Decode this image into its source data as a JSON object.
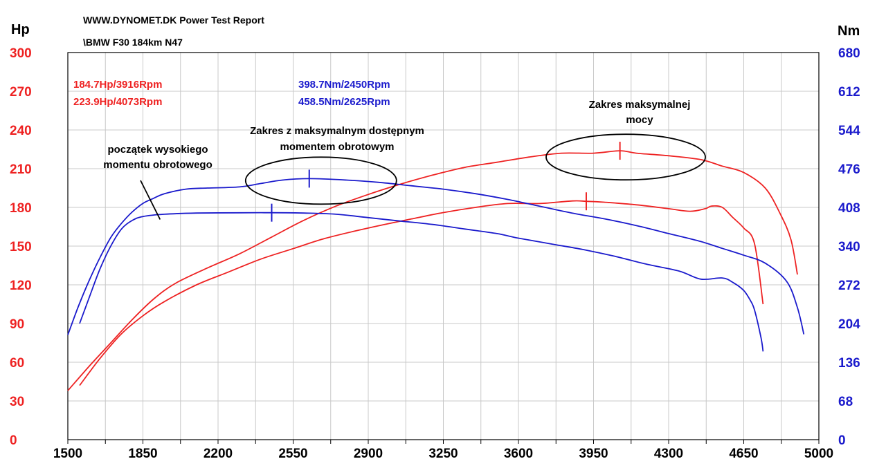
{
  "header": {
    "title": "WWW.DYNOMET.DK  Power Test Report",
    "subtitle": "\\BMW F30 184km N47"
  },
  "colors": {
    "power": "#ee2222",
    "torque": "#1a1acc",
    "grid": "#c8c8c8",
    "text": "#000000"
  },
  "chart_data": {
    "type": "line",
    "x": {
      "label": "",
      "range": [
        1500,
        5000
      ],
      "ticks": [
        1500,
        1850,
        2200,
        2550,
        2900,
        3250,
        3600,
        3950,
        4300,
        4650,
        5000
      ],
      "minor_step": 175
    },
    "y_left": {
      "label": "Hp",
      "range": [
        0,
        300
      ],
      "ticks": [
        0,
        30,
        60,
        90,
        120,
        150,
        180,
        210,
        240,
        270,
        300
      ]
    },
    "y_right": {
      "label": "Nm",
      "range": [
        0,
        680
      ],
      "ticks": [
        0,
        68,
        136,
        204,
        272,
        340,
        408,
        476,
        544,
        612,
        680
      ]
    },
    "grid": true,
    "readouts": {
      "power": [
        "184.7Hp/3916Rpm",
        "223.9Hp/4073Rpm"
      ],
      "torque": [
        "398.7Nm/2450Rpm",
        "458.5Nm/2625Rpm"
      ]
    },
    "series": [
      {
        "unit": "Hp",
        "axis": "left",
        "color": "#ee2222",
        "marker": [
          3916,
          184.7
        ],
        "points": [
          [
            1555,
            42
          ],
          [
            1650,
            63
          ],
          [
            1750,
            82
          ],
          [
            1850,
            96
          ],
          [
            1950,
            107
          ],
          [
            2100,
            120
          ],
          [
            2250,
            130
          ],
          [
            2400,
            140
          ],
          [
            2550,
            148
          ],
          [
            2700,
            156
          ],
          [
            2900,
            164
          ],
          [
            3100,
            171
          ],
          [
            3250,
            176
          ],
          [
            3400,
            180
          ],
          [
            3550,
            183
          ],
          [
            3700,
            183
          ],
          [
            3850,
            185
          ],
          [
            3916,
            184.7
          ],
          [
            4000,
            184
          ],
          [
            4150,
            182
          ],
          [
            4300,
            179
          ],
          [
            4400,
            177
          ],
          [
            4470,
            179
          ],
          [
            4500,
            181
          ],
          [
            4550,
            180
          ],
          [
            4600,
            172
          ],
          [
            4650,
            164
          ],
          [
            4700,
            152
          ],
          [
            4740,
            105
          ]
        ]
      },
      {
        "unit": "Hp",
        "axis": "left",
        "color": "#ee2222",
        "marker": [
          4073,
          223.9
        ],
        "points": [
          [
            1500,
            38
          ],
          [
            1600,
            57
          ],
          [
            1700,
            75
          ],
          [
            1800,
            93
          ],
          [
            1900,
            109
          ],
          [
            2000,
            121
          ],
          [
            2150,
            133
          ],
          [
            2300,
            144
          ],
          [
            2450,
            157
          ],
          [
            2600,
            170
          ],
          [
            2750,
            181
          ],
          [
            2900,
            190
          ],
          [
            3050,
            198
          ],
          [
            3200,
            205
          ],
          [
            3350,
            211
          ],
          [
            3500,
            215
          ],
          [
            3650,
            219
          ],
          [
            3800,
            222
          ],
          [
            3950,
            222
          ],
          [
            4073,
            223.9
          ],
          [
            4150,
            222
          ],
          [
            4300,
            220
          ],
          [
            4450,
            217
          ],
          [
            4550,
            212
          ],
          [
            4650,
            207
          ],
          [
            4750,
            195
          ],
          [
            4820,
            175
          ],
          [
            4870,
            155
          ],
          [
            4900,
            128
          ]
        ]
      },
      {
        "unit": "Nm",
        "axis": "right",
        "color": "#1a1acc",
        "marker": [
          2450,
          398.7
        ],
        "points": [
          [
            1555,
            204
          ],
          [
            1600,
            250
          ],
          [
            1650,
            300
          ],
          [
            1700,
            340
          ],
          [
            1750,
            370
          ],
          [
            1800,
            385
          ],
          [
            1850,
            392
          ],
          [
            1950,
            396
          ],
          [
            2100,
            398
          ],
          [
            2300,
            398.5
          ],
          [
            2450,
            398.7
          ],
          [
            2600,
            398
          ],
          [
            2750,
            396
          ],
          [
            2900,
            390
          ],
          [
            3050,
            384
          ],
          [
            3200,
            378
          ],
          [
            3350,
            370
          ],
          [
            3500,
            362
          ],
          [
            3600,
            354
          ],
          [
            3750,
            344
          ],
          [
            3900,
            334
          ],
          [
            4050,
            322
          ],
          [
            4200,
            308
          ],
          [
            4350,
            296
          ],
          [
            4450,
            282
          ],
          [
            4550,
            284
          ],
          [
            4600,
            276
          ],
          [
            4650,
            262
          ],
          [
            4680,
            245
          ],
          [
            4700,
            228
          ],
          [
            4730,
            180
          ],
          [
            4740,
            155
          ]
        ]
      },
      {
        "unit": "Nm",
        "axis": "right",
        "color": "#1a1acc",
        "marker": [
          2625,
          458.5
        ],
        "points": [
          [
            1500,
            184
          ],
          [
            1550,
            235
          ],
          [
            1600,
            280
          ],
          [
            1650,
            320
          ],
          [
            1700,
            355
          ],
          [
            1750,
            380
          ],
          [
            1800,
            400
          ],
          [
            1850,
            415
          ],
          [
            1900,
            424
          ],
          [
            1950,
            432
          ],
          [
            2050,
            440
          ],
          [
            2150,
            442
          ],
          [
            2300,
            444
          ],
          [
            2400,
            450
          ],
          [
            2500,
            456
          ],
          [
            2625,
            458.5
          ],
          [
            2800,
            456
          ],
          [
            2950,
            452
          ],
          [
            3100,
            446
          ],
          [
            3250,
            440
          ],
          [
            3400,
            432
          ],
          [
            3550,
            422
          ],
          [
            3700,
            410
          ],
          [
            3850,
            398
          ],
          [
            4000,
            388
          ],
          [
            4150,
            376
          ],
          [
            4300,
            362
          ],
          [
            4450,
            348
          ],
          [
            4550,
            336
          ],
          [
            4650,
            324
          ],
          [
            4750,
            310
          ],
          [
            4850,
            278
          ],
          [
            4900,
            232
          ],
          [
            4930,
            185
          ]
        ]
      }
    ],
    "annotations": [
      {
        "text": "początek wysokiego\nmomentu obrotowego",
        "arrow_to": [
          1930,
          394
        ],
        "arrow_axis": "right"
      },
      {
        "text": "Zakres z maksymalnym dostępnym\nmomentem obrotowym",
        "ellipse_center": [
          2680,
          455
        ],
        "ellipse_axis": "right"
      },
      {
        "text": "Zakres maksymalnej\nmocy",
        "ellipse_center": [
          4100,
          219
        ],
        "ellipse_axis": "left"
      }
    ]
  }
}
